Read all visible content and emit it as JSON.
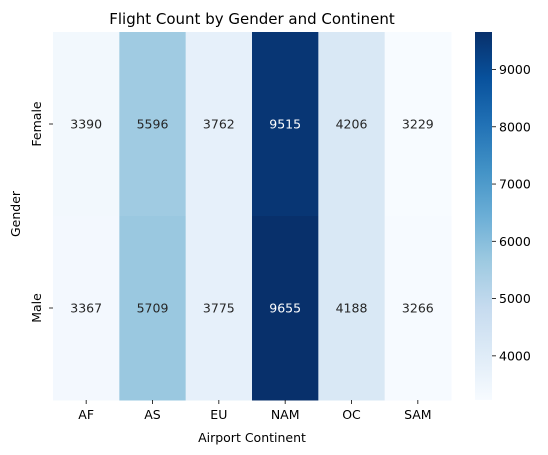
{
  "chart_data": {
    "type": "heatmap",
    "title": "Flight Count by Gender and Continent",
    "xlabel": "Airport Continent",
    "ylabel": "Gender",
    "x_categories": [
      "AF",
      "AS",
      "EU",
      "NAM",
      "OC",
      "SAM"
    ],
    "y_categories": [
      "Female",
      "Male"
    ],
    "values": [
      [
        3390,
        5596,
        3762,
        9515,
        4206,
        3229
      ],
      [
        3367,
        5709,
        3775,
        9655,
        4188,
        3266
      ]
    ],
    "colorscale": "Blues",
    "colorbar": {
      "range": [
        3229,
        9655
      ],
      "ticks": [
        4000,
        5000,
        6000,
        7000,
        8000,
        9000
      ]
    },
    "annotations_shown": true
  }
}
